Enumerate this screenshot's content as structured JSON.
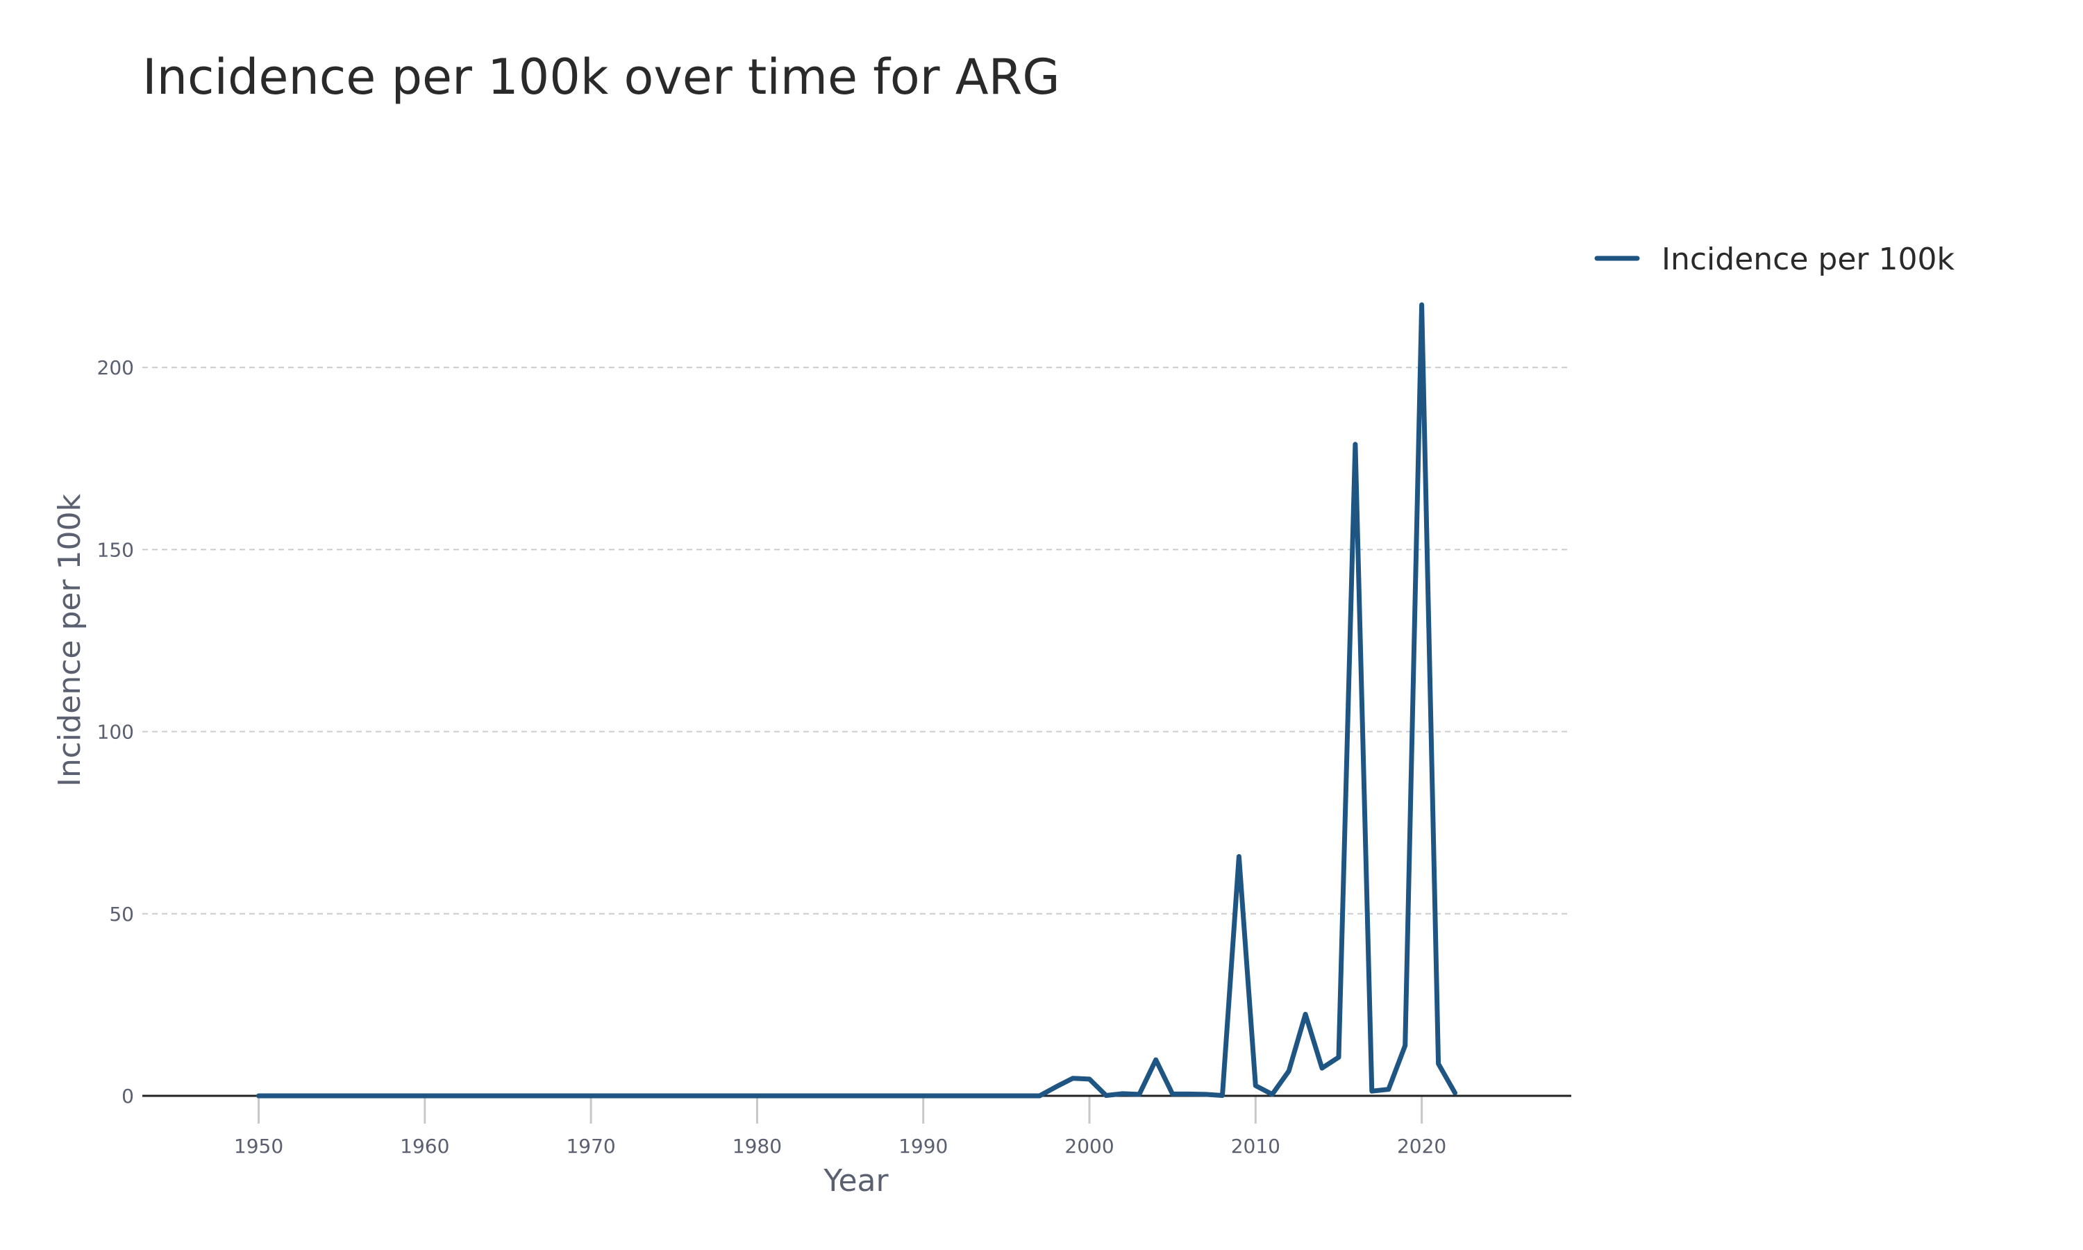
{
  "chart_data": {
    "type": "line",
    "title": "Incidence per 100k over time for ARG",
    "xlabel": "Year",
    "ylabel": "Incidence per 100k",
    "xlim": [
      1943,
      2029
    ],
    "ylim": [
      0,
      225
    ],
    "x_ticks": [
      1950,
      1960,
      1970,
      1980,
      1990,
      2000,
      2010,
      2020
    ],
    "y_ticks": [
      0,
      50,
      100,
      150,
      200
    ],
    "grid": true,
    "legend_position": "top-right",
    "series": [
      {
        "name": "Incidence per 100k",
        "color": "#1f5582",
        "x": [
          1950,
          1951,
          1952,
          1953,
          1954,
          1955,
          1956,
          1957,
          1958,
          1959,
          1960,
          1961,
          1962,
          1963,
          1964,
          1965,
          1966,
          1967,
          1968,
          1969,
          1970,
          1971,
          1972,
          1973,
          1974,
          1975,
          1976,
          1977,
          1978,
          1979,
          1980,
          1981,
          1982,
          1983,
          1984,
          1985,
          1986,
          1987,
          1988,
          1989,
          1990,
          1991,
          1992,
          1993,
          1994,
          1995,
          1996,
          1997,
          1998,
          1999,
          2000,
          2001,
          2002,
          2003,
          2004,
          2005,
          2006,
          2007,
          2008,
          2009,
          2010,
          2011,
          2012,
          2013,
          2014,
          2015,
          2016,
          2017,
          2018,
          2019,
          2020,
          2021,
          2022
        ],
        "values": [
          0,
          0,
          0,
          0,
          0,
          0,
          0,
          0,
          0,
          0,
          0,
          0,
          0,
          0,
          0,
          0,
          0,
          0,
          0,
          0,
          0,
          0,
          0,
          0,
          0,
          0,
          0,
          0,
          0,
          0,
          0,
          0,
          0,
          0,
          0,
          0,
          0,
          0,
          0,
          0,
          0,
          0,
          0,
          0,
          0,
          0,
          0,
          0,
          2.5,
          4.8,
          4.6,
          0.1,
          0.6,
          0.4,
          9.9,
          0.5,
          0.5,
          0.4,
          0.1,
          65.7,
          2.8,
          0.4,
          6.8,
          22.4,
          7.6,
          10.6,
          178.9,
          1.3,
          1.8,
          13.8,
          217.2,
          8.8,
          0.8
        ]
      }
    ]
  }
}
